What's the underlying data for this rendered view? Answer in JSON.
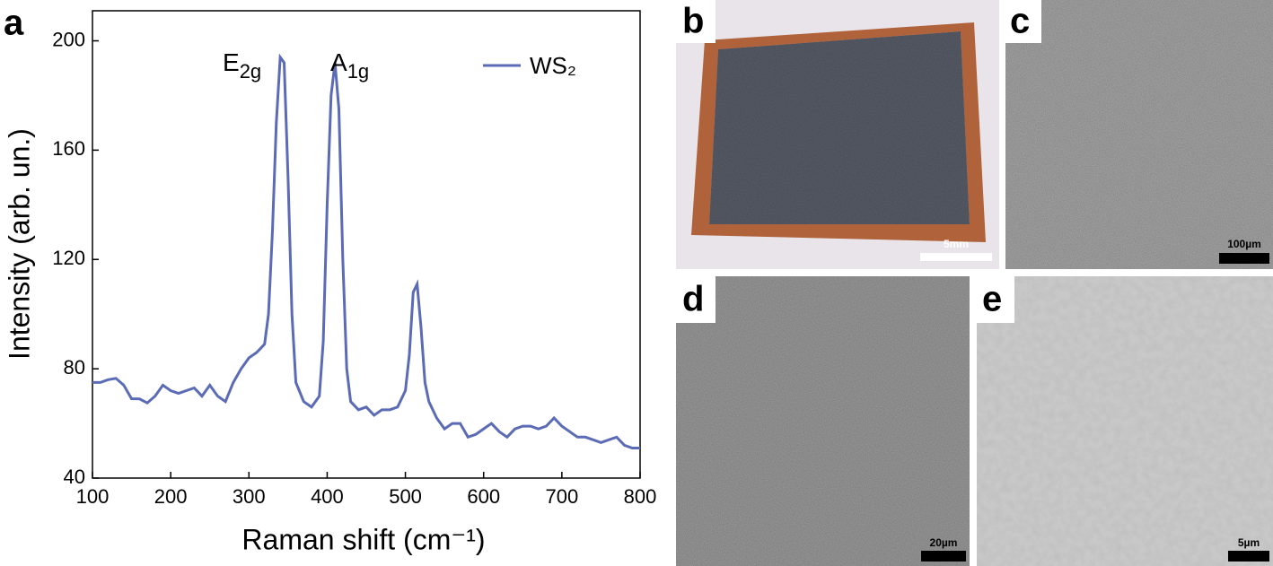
{
  "chart_data": {
    "type": "line",
    "x_label": "Raman shift (cm⁻¹)",
    "y_label": "Intensity (arb. un.)",
    "x": [
      100,
      110,
      120,
      130,
      140,
      150,
      160,
      170,
      180,
      190,
      200,
      210,
      220,
      230,
      240,
      250,
      260,
      270,
      280,
      290,
      300,
      310,
      320,
      325,
      330,
      335,
      340,
      345,
      350,
      355,
      360,
      370,
      380,
      390,
      395,
      400,
      405,
      410,
      415,
      420,
      425,
      430,
      440,
      450,
      460,
      470,
      480,
      490,
      500,
      505,
      510,
      515,
      520,
      525,
      530,
      540,
      550,
      560,
      570,
      580,
      590,
      600,
      610,
      620,
      630,
      640,
      650,
      660,
      670,
      680,
      690,
      700,
      710,
      720,
      730,
      740,
      750,
      760,
      770,
      780,
      790,
      800
    ],
    "series": [
      {
        "name": "WS₂",
        "color": "#5b6bb5",
        "values": [
          75,
          75,
          76,
          76.5,
          74,
          69,
          69,
          67.5,
          70,
          74,
          72,
          71,
          72,
          73,
          70,
          74,
          70,
          68,
          75,
          80,
          84,
          86,
          89,
          100,
          130,
          170,
          194,
          192,
          150,
          100,
          75,
          68,
          66,
          70,
          90,
          140,
          180,
          192,
          175,
          120,
          80,
          68,
          65,
          66,
          63,
          65,
          65,
          66,
          72,
          85,
          108,
          111,
          95,
          75,
          68,
          62,
          58,
          60,
          60,
          55,
          56,
          58,
          60,
          57,
          55,
          58,
          59,
          59,
          58,
          59,
          62,
          59,
          57,
          55,
          55,
          54,
          53,
          54,
          55,
          52,
          51,
          51
        ]
      }
    ],
    "annotations": [
      {
        "base": "E",
        "sub": "2g"
      },
      {
        "base": "A",
        "sub": "1g"
      }
    ],
    "xlim": [
      100,
      800
    ],
    "ylim": [
      40,
      211
    ],
    "xticks": [
      100,
      200,
      300,
      400,
      500,
      600,
      700,
      800
    ],
    "yticks": [
      40,
      80,
      120,
      160,
      200
    ]
  },
  "panel_labels": [
    "a",
    "b",
    "c",
    "d",
    "e"
  ],
  "scale_bars": [
    "5mm",
    "100µm",
    "20µm",
    "5µm"
  ]
}
